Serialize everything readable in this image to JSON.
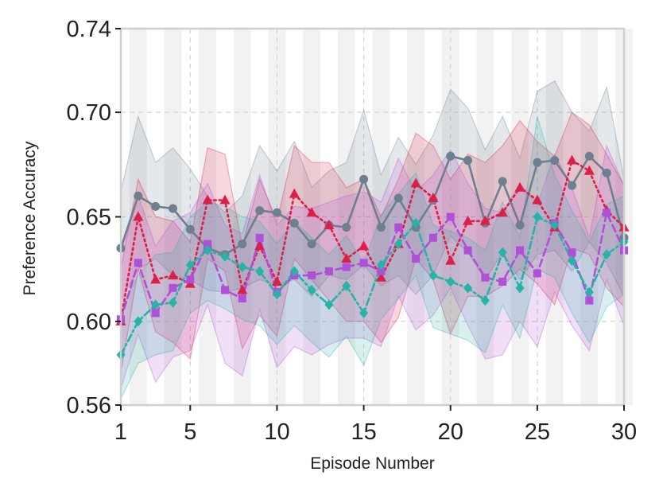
{
  "chart_data": {
    "type": "line",
    "title": "",
    "xlabel": "Episode Number",
    "ylabel": "Preference Accuracy",
    "xlim": [
      1,
      30
    ],
    "ylim": [
      0.56,
      0.74
    ],
    "xticks": [
      1,
      5,
      10,
      15,
      20,
      25,
      30
    ],
    "xtick_labels": [
      "1",
      "5",
      "10",
      "15",
      "20",
      "25",
      "30"
    ],
    "yticks": [
      0.56,
      0.6,
      0.65,
      0.7,
      0.74
    ],
    "ytick_labels": [
      "0.56",
      "0.60",
      "0.65",
      "0.70",
      "0.74"
    ],
    "grid": true,
    "legend": "none",
    "x": [
      1,
      2,
      3,
      4,
      5,
      6,
      7,
      8,
      9,
      10,
      11,
      12,
      13,
      14,
      15,
      16,
      17,
      18,
      19,
      20,
      21,
      22,
      23,
      24,
      25,
      26,
      27,
      28,
      29,
      30
    ],
    "series": [
      {
        "name": "gray",
        "color": "#6e7f8f",
        "marker": "circle",
        "linestyle": "solid",
        "values": [
          0.635,
          0.66,
          0.655,
          0.654,
          0.644,
          0.635,
          0.632,
          0.637,
          0.653,
          0.652,
          0.647,
          0.637,
          0.646,
          0.645,
          0.668,
          0.645,
          0.659,
          0.645,
          0.658,
          0.679,
          0.677,
          0.647,
          0.667,
          0.646,
          0.676,
          0.677,
          0.665,
          0.679,
          0.671,
          0.64
        ],
        "lower": [
          0.61,
          0.625,
          0.63,
          0.622,
          0.62,
          0.615,
          0.614,
          0.616,
          0.62,
          0.617,
          0.62,
          0.612,
          0.622,
          0.62,
          0.627,
          0.617,
          0.622,
          0.613,
          0.622,
          0.641,
          0.633,
          0.62,
          0.633,
          0.62,
          0.632,
          0.634,
          0.624,
          0.638,
          0.628,
          0.612
        ],
        "upper": [
          0.662,
          0.698,
          0.676,
          0.683,
          0.673,
          0.66,
          0.652,
          0.66,
          0.684,
          0.672,
          0.686,
          0.664,
          0.672,
          0.676,
          0.701,
          0.67,
          0.688,
          0.675,
          0.689,
          0.711,
          0.702,
          0.682,
          0.698,
          0.678,
          0.71,
          0.715,
          0.7,
          0.691,
          0.712,
          0.668
        ]
      },
      {
        "name": "crimson",
        "color": "#dc1f48",
        "marker": "triangle",
        "linestyle": "dotted",
        "values": [
          0.6,
          0.65,
          0.62,
          0.622,
          0.618,
          0.658,
          0.658,
          0.615,
          0.636,
          0.619,
          0.661,
          0.652,
          0.646,
          0.63,
          0.636,
          0.621,
          0.637,
          0.666,
          0.659,
          0.629,
          0.648,
          0.648,
          0.652,
          0.664,
          0.658,
          0.645,
          0.677,
          0.672,
          0.653,
          0.645
        ],
        "lower": [
          0.575,
          0.625,
          0.595,
          0.59,
          0.582,
          0.63,
          0.624,
          0.587,
          0.603,
          0.593,
          0.63,
          0.62,
          0.61,
          0.6,
          0.6,
          0.59,
          0.602,
          0.63,
          0.62,
          0.594,
          0.612,
          0.612,
          0.617,
          0.625,
          0.618,
          0.608,
          0.635,
          0.632,
          0.616,
          0.607
        ],
        "upper": [
          0.625,
          0.668,
          0.65,
          0.648,
          0.638,
          0.683,
          0.68,
          0.636,
          0.668,
          0.648,
          0.684,
          0.676,
          0.676,
          0.664,
          0.668,
          0.65,
          0.668,
          0.69,
          0.684,
          0.668,
          0.68,
          0.676,
          0.684,
          0.696,
          0.686,
          0.679,
          0.7,
          0.694,
          0.68,
          0.665
        ]
      },
      {
        "name": "purple",
        "color": "#b050d8",
        "marker": "square",
        "linestyle": "dashed",
        "values": [
          0.601,
          0.628,
          0.604,
          0.616,
          0.62,
          0.637,
          0.615,
          0.611,
          0.64,
          0.614,
          0.622,
          0.622,
          0.624,
          0.626,
          0.628,
          0.624,
          0.645,
          0.63,
          0.64,
          0.65,
          0.634,
          0.621,
          0.619,
          0.634,
          0.623,
          0.647,
          0.633,
          0.61,
          0.652,
          0.634
        ],
        "lower": [
          0.568,
          0.594,
          0.571,
          0.583,
          0.586,
          0.608,
          0.58,
          0.574,
          0.606,
          0.578,
          0.588,
          0.584,
          0.589,
          0.592,
          0.592,
          0.588,
          0.612,
          0.596,
          0.603,
          0.616,
          0.598,
          0.582,
          0.584,
          0.6,
          0.588,
          0.614,
          0.598,
          0.586,
          0.62,
          0.598
        ],
        "upper": [
          0.632,
          0.66,
          0.636,
          0.648,
          0.652,
          0.666,
          0.646,
          0.642,
          0.67,
          0.646,
          0.655,
          0.654,
          0.657,
          0.66,
          0.662,
          0.657,
          0.678,
          0.662,
          0.67,
          0.682,
          0.666,
          0.654,
          0.652,
          0.666,
          0.656,
          0.68,
          0.664,
          0.64,
          0.684,
          0.665
        ]
      },
      {
        "name": "teal",
        "color": "#27b3a6",
        "marker": "diamond",
        "linestyle": "dashdot",
        "values": [
          0.584,
          0.6,
          0.608,
          0.609,
          0.627,
          0.634,
          0.631,
          0.626,
          0.624,
          0.613,
          0.624,
          0.615,
          0.608,
          0.617,
          0.604,
          0.627,
          0.637,
          0.647,
          0.622,
          0.619,
          0.616,
          0.61,
          0.633,
          0.616,
          0.65,
          0.646,
          0.629,
          0.614,
          0.632,
          0.638
        ],
        "lower": [
          0.563,
          0.58,
          0.584,
          0.586,
          0.604,
          0.61,
          0.606,
          0.601,
          0.598,
          0.589,
          0.598,
          0.59,
          0.583,
          0.593,
          0.579,
          0.601,
          0.611,
          0.622,
          0.597,
          0.594,
          0.591,
          0.585,
          0.608,
          0.592,
          0.625,
          0.621,
          0.604,
          0.59,
          0.607,
          0.613
        ],
        "upper": [
          0.606,
          0.622,
          0.632,
          0.633,
          0.65,
          0.657,
          0.655,
          0.65,
          0.648,
          0.637,
          0.648,
          0.64,
          0.632,
          0.641,
          0.628,
          0.651,
          0.661,
          0.671,
          0.646,
          0.643,
          0.64,
          0.634,
          0.657,
          0.64,
          0.698,
          0.67,
          0.653,
          0.638,
          0.656,
          0.66
        ]
      }
    ]
  }
}
